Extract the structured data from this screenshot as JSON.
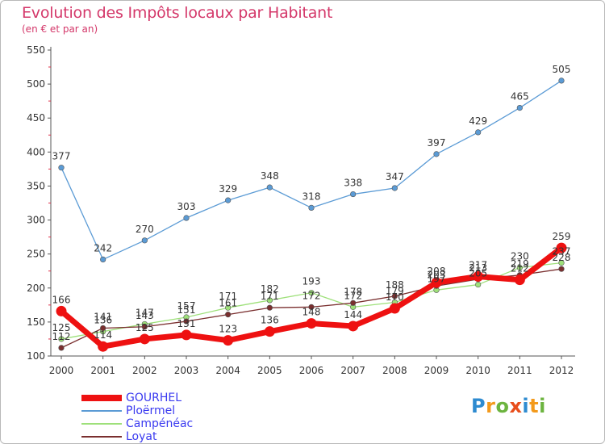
{
  "title": "Evolution des Impôts locaux par Habitant",
  "subtitle": "(en € et par an)",
  "logo": {
    "letters": [
      "P",
      "r",
      "o",
      "x",
      "i",
      "t",
      "i"
    ],
    "colors": [
      "#2e8bd0",
      "#f39a1c",
      "#6cb43f",
      "#e84e1c",
      "#2e8bd0",
      "#f39a1c",
      "#6cb43f"
    ]
  },
  "chart_data": {
    "type": "line",
    "title": "Evolution des Impôts locaux par Habitant",
    "subtitle": "(en € et par an)",
    "xlabel": "",
    "ylabel": "",
    "x": [
      "2000",
      "2001",
      "2002",
      "2003",
      "2004",
      "2005",
      "2006",
      "2007",
      "2008",
      "2009",
      "2010",
      "2011",
      "2012"
    ],
    "ylim": [
      100,
      550
    ],
    "yticks": [
      "100",
      "150",
      "200",
      "250",
      "300",
      "350",
      "400",
      "450",
      "500",
      "550"
    ],
    "grid": false,
    "legend_position": "bottom-left",
    "series": [
      {
        "name": "GOURHEL",
        "color": "#ee1111",
        "values": [
          166,
          114,
          125,
          131,
          123,
          136,
          148,
          144,
          170,
          208,
          217,
          212,
          259
        ],
        "labels": [
          "166",
          "114",
          "125",
          "131",
          "123",
          "136",
          "148",
          "144",
          "170",
          "208",
          "217",
          "212",
          "259"
        ]
      },
      {
        "name": "Ploërmel",
        "color": "#5b9bd5",
        "values": [
          377,
          242,
          270,
          303,
          329,
          348,
          318,
          338,
          347,
          397,
          429,
          465,
          505
        ],
        "labels": [
          "377",
          "242",
          "270",
          "303",
          "329",
          "348",
          "318",
          "338",
          "347",
          "397",
          "429",
          "465",
          "505"
        ]
      },
      {
        "name": "Campénéac",
        "color": "#9ee07a",
        "values": [
          125,
          136,
          147,
          157,
          171,
          182,
          193,
          172,
          179,
          197,
          205,
          230,
          237
        ],
        "labels": [
          "125",
          "136",
          "147",
          "157",
          "171",
          "182",
          "193",
          "172",
          "179",
          "197",
          "205",
          "230",
          "237"
        ]
      },
      {
        "name": "Loyat",
        "color": "#7a2f2f",
        "values": [
          112,
          141,
          143,
          151,
          161,
          171,
          172,
          178,
          188,
          203,
          213,
          219,
          228
        ],
        "labels": [
          "112",
          "141",
          "143",
          "151",
          "161",
          "171",
          "172",
          "178",
          "188",
          "203",
          "213",
          "219",
          "228"
        ]
      }
    ]
  }
}
